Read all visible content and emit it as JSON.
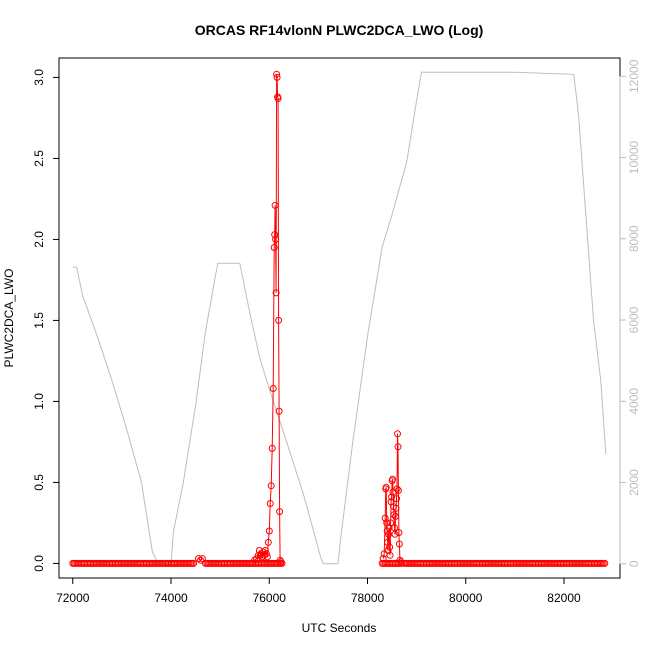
{
  "chart_data": {
    "type": "line",
    "title": "ORCAS RF14vlonN PLWC2DCA_LWO (Log)",
    "xlabel": "UTC Seconds",
    "ylabel": "PLWC2DCA_LWO",
    "xlim": [
      71720,
      83140
    ],
    "ylim": [
      -0.09,
      3.12
    ],
    "y2lim": [
      -350,
      12450
    ],
    "x_ticks": [
      72000,
      74000,
      76000,
      78000,
      80000,
      82000
    ],
    "y_ticks": [
      0.0,
      0.5,
      1.0,
      1.5,
      2.0,
      2.5,
      3.0
    ],
    "y_tick_labels": [
      "0.0",
      "0.5",
      "1.0",
      "1.5",
      "2.0",
      "2.5",
      "3.0"
    ],
    "y2_ticks": [
      0,
      2000,
      4000,
      6000,
      8000,
      10000,
      12000
    ],
    "colors": {
      "primary": "#ff0000",
      "secondary": "#bebebe",
      "axis": "#000000",
      "axis2": "#bdbdbd"
    },
    "baseline": {
      "x_start": 72000,
      "x_end": 82850,
      "step": 30,
      "value": 0.0,
      "gaps": [
        [
          74480,
          74680
        ],
        [
          76260,
          78300
        ],
        [
          78700,
          78740
        ]
      ]
    },
    "series": [
      {
        "role": "primary",
        "style": "line+points",
        "points": [
          [
            74560,
            0.03
          ],
          [
            74600,
            0.02
          ],
          [
            74640,
            0.03
          ],
          [
            75700,
            0.02
          ],
          [
            75740,
            0.03
          ],
          [
            75780,
            0.05
          ],
          [
            75800,
            0.08
          ],
          [
            75820,
            0.05
          ],
          [
            75840,
            0.06
          ],
          [
            75860,
            0.04
          ],
          [
            75880,
            0.07
          ],
          [
            75900,
            0.05
          ],
          [
            75920,
            0.08
          ],
          [
            75940,
            0.06
          ],
          [
            75960,
            0.04
          ],
          [
            75980,
            0.13
          ],
          [
            76000,
            0.2
          ],
          [
            76020,
            0.37
          ],
          [
            76040,
            0.48
          ],
          [
            76060,
            0.71
          ],
          [
            76080,
            1.08
          ],
          [
            76100,
            1.95
          ],
          [
            76110,
            2.03
          ],
          [
            76120,
            2.21
          ],
          [
            76130,
            2.0
          ],
          [
            76140,
            1.67
          ],
          [
            76150,
            3.02
          ],
          [
            76160,
            3.0
          ],
          [
            76170,
            2.88
          ],
          [
            76180,
            2.87
          ],
          [
            76190,
            1.5
          ],
          [
            76200,
            0.94
          ],
          [
            76210,
            0.32
          ],
          [
            76220,
            0.02
          ],
          [
            76240,
            0.01
          ],
          [
            78320,
            0.03
          ],
          [
            78340,
            0.06
          ],
          [
            78360,
            0.28
          ],
          [
            78370,
            0.46
          ],
          [
            78380,
            0.47
          ],
          [
            78390,
            0.25
          ],
          [
            78400,
            0.2
          ],
          [
            78410,
            0.13
          ],
          [
            78420,
            0.08
          ],
          [
            78430,
            0.18
          ],
          [
            78440,
            0.22
          ],
          [
            78450,
            0.1
          ],
          [
            78460,
            0.05
          ],
          [
            78470,
            0.25
          ],
          [
            78480,
            0.38
          ],
          [
            78490,
            0.41
          ],
          [
            78500,
            0.51
          ],
          [
            78510,
            0.52
          ],
          [
            78520,
            0.44
          ],
          [
            78530,
            0.35
          ],
          [
            78540,
            0.3
          ],
          [
            78550,
            0.22
          ],
          [
            78560,
            0.18
          ],
          [
            78570,
            0.29
          ],
          [
            78580,
            0.34
          ],
          [
            78590,
            0.4
          ],
          [
            78600,
            0.46
          ],
          [
            78610,
            0.8
          ],
          [
            78620,
            0.72
          ],
          [
            78630,
            0.45
          ],
          [
            78640,
            0.19
          ],
          [
            78650,
            0.12
          ],
          [
            78660,
            0.02
          ],
          [
            78680,
            0.01
          ]
        ]
      },
      {
        "role": "secondary",
        "style": "line",
        "points": [
          [
            72000,
            7300
          ],
          [
            72080,
            7300
          ],
          [
            72200,
            6600
          ],
          [
            72500,
            5600
          ],
          [
            72800,
            4500
          ],
          [
            73100,
            3300
          ],
          [
            73400,
            2000
          ],
          [
            73620,
            300
          ],
          [
            73720,
            50
          ],
          [
            73900,
            0
          ],
          [
            74000,
            0
          ],
          [
            74050,
            800
          ],
          [
            74250,
            2000
          ],
          [
            74500,
            3900
          ],
          [
            74700,
            5700
          ],
          [
            74950,
            7400
          ],
          [
            75400,
            7400
          ],
          [
            75600,
            6200
          ],
          [
            75800,
            5100
          ],
          [
            76000,
            4300
          ],
          [
            76300,
            3200
          ],
          [
            76700,
            1700
          ],
          [
            77050,
            150
          ],
          [
            77100,
            0
          ],
          [
            77400,
            0
          ],
          [
            77450,
            600
          ],
          [
            77700,
            3000
          ],
          [
            78000,
            5600
          ],
          [
            78300,
            7800
          ],
          [
            78500,
            8600
          ],
          [
            78800,
            9900
          ],
          [
            79000,
            11400
          ],
          [
            79100,
            12100
          ],
          [
            80400,
            12100
          ],
          [
            81000,
            12100
          ],
          [
            82200,
            12050
          ],
          [
            82300,
            11000
          ],
          [
            82600,
            6000
          ],
          [
            82750,
            4500
          ],
          [
            82850,
            2700
          ]
        ]
      }
    ]
  }
}
